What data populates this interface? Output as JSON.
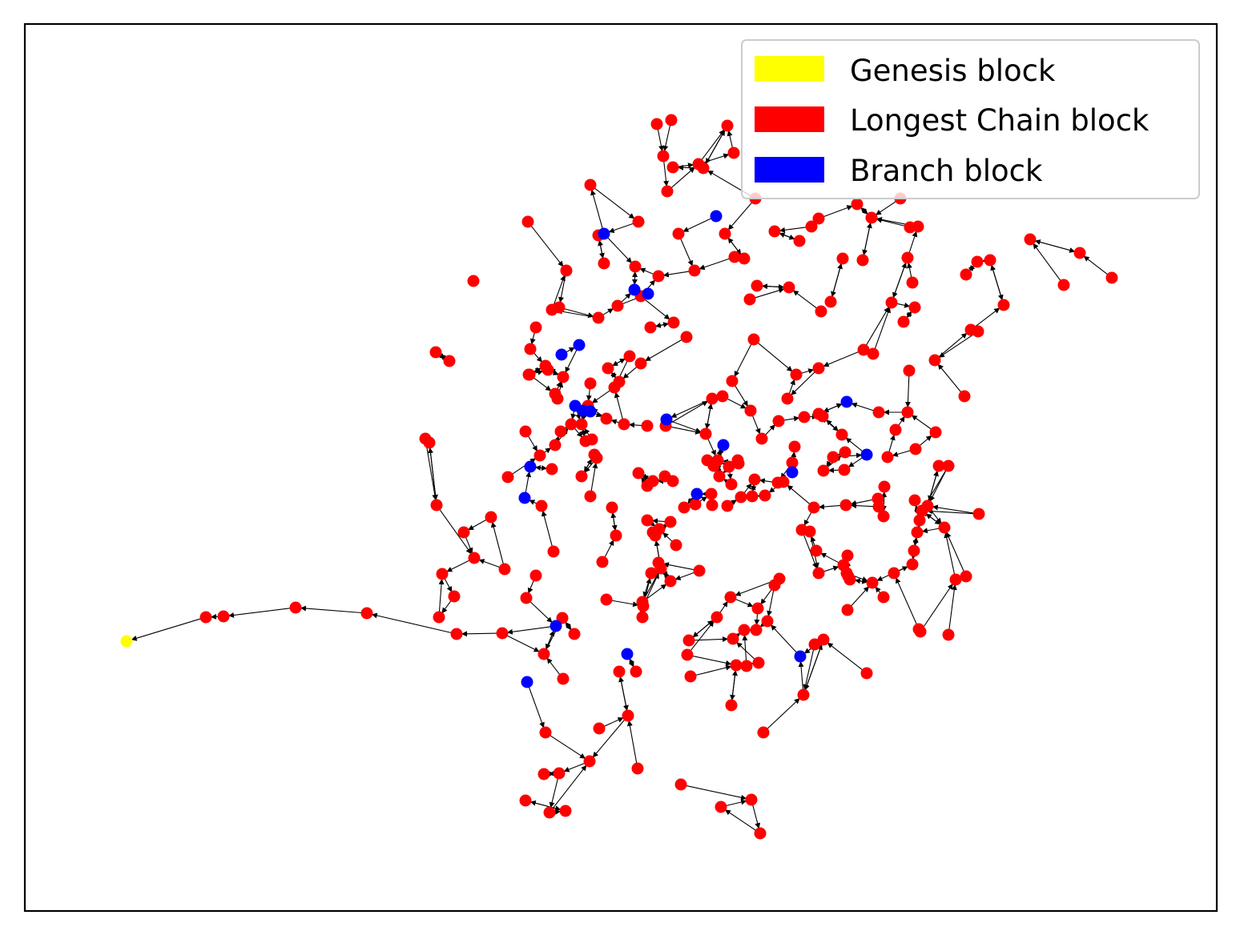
{
  "chart_data": {
    "type": "network-graph",
    "legend": [
      {
        "label": "Genesis block",
        "color": "#ffff00"
      },
      {
        "label": "Longest Chain block",
        "color": "#ff0000"
      },
      {
        "label": "Branch block",
        "color": "#0000ff"
      }
    ],
    "axes_ticks_visible": false,
    "edge_color": "#000000",
    "edge_direction": "child-to-parent (arrowheads point toward the parent block)",
    "legend_placement": "upper-right",
    "node_counts": {
      "genesis": 1,
      "branch": 26
    }
  }
}
